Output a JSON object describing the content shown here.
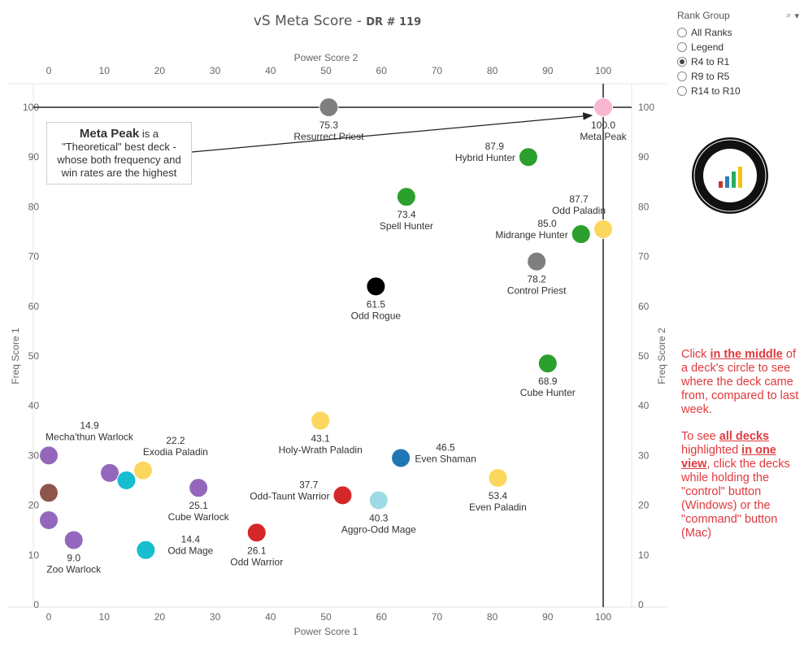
{
  "title": {
    "main": "vS Meta Score",
    "sep": " - ",
    "sub": "DR # 119"
  },
  "rank_group": {
    "label": "Rank Group",
    "options": [
      "All Ranks",
      "Legend",
      "R4 to R1",
      "R9 to R5",
      "R14 to R10"
    ],
    "selected": "R4 to R1"
  },
  "callout": {
    "bold": "Meta Peak",
    "text_1": " is a",
    "text_2": "\"Theoretical\" best deck -",
    "text_3": "whose both frequency and",
    "text_4": "win rates are the highest"
  },
  "notes": {
    "p1_pre": "Click ",
    "p1_em": "in the middle",
    "p1_post": " of a deck's circle to see where the deck came from, compared to last week.",
    "p2_pre": "To see ",
    "p2_em1": "all decks",
    "p2_mid": " highlighted ",
    "p2_em2": "in one view",
    "p2_post": ", click the decks while holding the \"control\" button (Windows) or the \"command\" button (Mac)"
  },
  "colors": {
    "green": "#2ca02c",
    "gray": "#7f7f7f",
    "black": "#000000",
    "yellow": "#fcd75e",
    "purple": "#9467bd",
    "teal": "#17becf",
    "lightteal": "#9edae5",
    "red": "#d62728",
    "blue": "#1f77b4",
    "brown": "#8c564b",
    "pink": "#f7b6d2"
  },
  "chart_data": {
    "type": "scatter",
    "title": "vS Meta Score - DR # 119",
    "xlabel": "Power Score 1",
    "x2label": "Power Score 2",
    "ylabel": "Freq Score 1",
    "y2label": "Freq Score 2",
    "xlim": [
      0,
      100
    ],
    "ylim": [
      0,
      100
    ],
    "xticks": [
      0,
      10,
      20,
      30,
      40,
      50,
      60,
      70,
      80,
      90,
      100
    ],
    "yticks": [
      0,
      10,
      20,
      30,
      40,
      50,
      60,
      70,
      80,
      90,
      100
    ],
    "reference_lines": {
      "x": 100,
      "y": 100
    },
    "points": [
      {
        "name": "Meta Peak",
        "score": "100.0",
        "x": 100,
        "y": 100,
        "color": "pink",
        "label": "below"
      },
      {
        "name": "Resurrect Priest",
        "score": "75.3",
        "x": 50.5,
        "y": 100,
        "color": "gray",
        "label": "below"
      },
      {
        "name": "Hybrid Hunter",
        "score": "87.9",
        "x": 86.5,
        "y": 90,
        "color": "green",
        "label": "left"
      },
      {
        "name": "Spell Hunter",
        "score": "73.4",
        "x": 64.5,
        "y": 82,
        "color": "green",
        "label": "below"
      },
      {
        "name": "Odd Paladin",
        "score": "87.7",
        "x": 100,
        "y": 75.5,
        "color": "yellow",
        "label": "above-left"
      },
      {
        "name": "Midrange Hunter",
        "score": "85.0",
        "x": 96,
        "y": 74.5,
        "color": "green",
        "label": "left"
      },
      {
        "name": "Control Priest",
        "score": "78.2",
        "x": 88,
        "y": 69,
        "color": "gray",
        "label": "below"
      },
      {
        "name": "Odd Rogue",
        "score": "61.5",
        "x": 59,
        "y": 64,
        "color": "black",
        "label": "below"
      },
      {
        "name": "Cube Hunter",
        "score": "68.9",
        "x": 90,
        "y": 48.5,
        "color": "green",
        "label": "below"
      },
      {
        "name": "Holy-Wrath Paladin",
        "score": "43.1",
        "x": 49,
        "y": 37,
        "color": "yellow",
        "label": "below"
      },
      {
        "name": "Even Shaman",
        "score": "46.5",
        "x": 63.5,
        "y": 29.5,
        "color": "blue",
        "label": "right"
      },
      {
        "name": "Even Paladin",
        "score": "53.4",
        "x": 81,
        "y": 25.5,
        "color": "yellow",
        "label": "below"
      },
      {
        "name": "Mecha'thun Warlock",
        "score": "14.9",
        "x": 0,
        "y": 30,
        "color": "purple",
        "label": "above-right"
      },
      {
        "name": "Exodia Paladin",
        "score": "22.2",
        "x": 17,
        "y": 27,
        "color": "yellow",
        "label": "above"
      },
      {
        "name": "",
        "score": "",
        "x": 11,
        "y": 26.5,
        "color": "purple",
        "label": "none"
      },
      {
        "name": "",
        "score": "",
        "x": 14,
        "y": 25,
        "color": "teal",
        "label": "none"
      },
      {
        "name": "",
        "score": "",
        "x": 0,
        "y": 22.5,
        "color": "brown",
        "label": "none"
      },
      {
        "name": "Cube Warlock",
        "score": "25.1",
        "x": 27,
        "y": 23.5,
        "color": "purple",
        "label": "below"
      },
      {
        "name": "Odd-Taunt Warrior",
        "score": "37.7",
        "x": 53,
        "y": 22,
        "color": "red",
        "label": "left"
      },
      {
        "name": "Aggro-Odd Mage",
        "score": "40.3",
        "x": 59.5,
        "y": 21,
        "color": "lightteal",
        "label": "below"
      },
      {
        "name": "",
        "score": "",
        "x": 0,
        "y": 17,
        "color": "purple",
        "label": "none"
      },
      {
        "name": "Zoo Warlock",
        "score": "9.0",
        "x": 4.5,
        "y": 13,
        "color": "purple",
        "label": "below"
      },
      {
        "name": "Odd Mage",
        "score": "14.4",
        "x": 17.5,
        "y": 11,
        "color": "teal",
        "label": "right"
      },
      {
        "name": "Odd Warrior",
        "score": "26.1",
        "x": 37.5,
        "y": 14.5,
        "color": "red",
        "label": "below"
      }
    ]
  }
}
